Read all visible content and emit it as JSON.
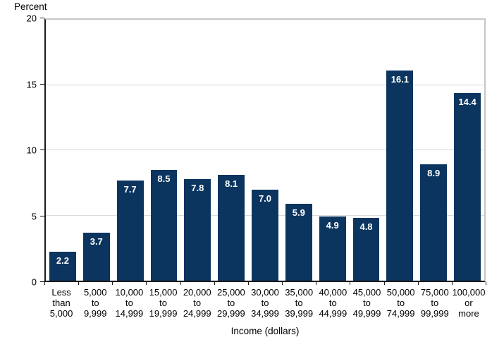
{
  "chart_data": {
    "type": "bar",
    "y_axis_title": "Percent",
    "x_axis_title": "Income (dollars)",
    "ylim": [
      0,
      20
    ],
    "yticks": [
      0,
      5,
      10,
      15,
      20
    ],
    "grid": true,
    "legend": "none",
    "categories": [
      "Less than 5,000",
      "5,000 to 9,999",
      "10,000 to 14,999",
      "15,000 to 19,999",
      "20,000 to 24,999",
      "25,000 to 29,999",
      "30,000 to 34,999",
      "35,000 to 39,999",
      "40,000 to 44,999",
      "45,000 to 49,999",
      "50,000 to 74,999",
      "75,000 to 99,999",
      "100,000 or more"
    ],
    "category_lines": [
      [
        "Less",
        "than",
        "5,000"
      ],
      [
        "5,000",
        "to",
        "9,999"
      ],
      [
        "10,000",
        "to",
        "14,999"
      ],
      [
        "15,000",
        "to",
        "19,999"
      ],
      [
        "20,000",
        "to",
        "24,999"
      ],
      [
        "25,000",
        "to",
        "29,999"
      ],
      [
        "30,000",
        "to",
        "34,999"
      ],
      [
        "35,000",
        "to",
        "39,999"
      ],
      [
        "40,000",
        "to",
        "44,999"
      ],
      [
        "45,000",
        "to",
        "49,999"
      ],
      [
        "50,000",
        "to",
        "74,999"
      ],
      [
        "75,000",
        "to",
        "99,999"
      ],
      [
        "100,000",
        "or",
        "more"
      ]
    ],
    "values": [
      2.2,
      3.7,
      7.7,
      8.5,
      7.8,
      8.1,
      7.0,
      5.9,
      4.9,
      4.8,
      16.1,
      8.9,
      14.4
    ],
    "value_labels": [
      "2.2",
      "3.7",
      "7.7",
      "8.5",
      "7.8",
      "8.1",
      "7.0",
      "5.9",
      "4.9",
      "4.8",
      "16.1",
      "8.9",
      "14.4"
    ],
    "colors": {
      "bar": "#0b355f",
      "value_label": "#ffffff",
      "gridline": "#d9d9d9",
      "plot_boundary": "#c6c6c6",
      "axis": "#1a1a1a",
      "text": "#000000",
      "background": "#ffffff"
    }
  }
}
